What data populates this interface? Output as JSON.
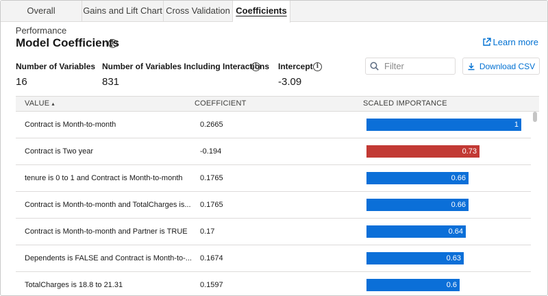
{
  "tabs": [
    {
      "label": "Overall Performance",
      "active": false
    },
    {
      "label": "Gains and Lift Chart",
      "active": false
    },
    {
      "label": "Cross Validation",
      "active": false
    },
    {
      "label": "Coefficients",
      "active": true
    }
  ],
  "header": {
    "title": "Model Coefficients",
    "learn_more": "Learn more"
  },
  "stats": [
    {
      "label": "Number of Variables",
      "value": "16",
      "info": false
    },
    {
      "label": "Number of Variables Including Interactions",
      "value": "831",
      "info": true
    },
    {
      "label": "Intercept",
      "value": "-3.09",
      "info": true
    }
  ],
  "filter": {
    "placeholder": "Filter",
    "value": ""
  },
  "download_label": "Download CSV",
  "table": {
    "headers": {
      "value": "VALUE",
      "sort_indicator": "▴",
      "coefficient": "COEFFICIENT",
      "importance": "SCALED IMPORTANCE"
    },
    "rows": [
      {
        "value": "Contract is Month-to-month",
        "coefficient": "0.2665",
        "importance": 1,
        "importance_label": "1",
        "sign": "positive"
      },
      {
        "value": "Contract is Two year",
        "coefficient": "-0.194",
        "importance": 0.73,
        "importance_label": "0.73",
        "sign": "negative"
      },
      {
        "value": "tenure is 0 to 1 and Contract is Month-to-month",
        "coefficient": "0.1765",
        "importance": 0.66,
        "importance_label": "0.66",
        "sign": "positive"
      },
      {
        "value": "Contract is Month-to-month and TotalCharges is...",
        "coefficient": "0.1765",
        "importance": 0.66,
        "importance_label": "0.66",
        "sign": "positive"
      },
      {
        "value": "Contract is Month-to-month and Partner is TRUE",
        "coefficient": "0.17",
        "importance": 0.64,
        "importance_label": "0.64",
        "sign": "positive"
      },
      {
        "value": "Dependents is FALSE and Contract is Month-to-...",
        "coefficient": "0.1674",
        "importance": 0.63,
        "importance_label": "0.63",
        "sign": "positive"
      },
      {
        "value": "TotalCharges is 18.8 to 21.31",
        "coefficient": "0.1597",
        "importance": 0.6,
        "importance_label": "0.6",
        "sign": "positive"
      }
    ]
  },
  "colors": {
    "positive": "#0b6fd8",
    "negative": "#c23934",
    "link": "#0070d2"
  },
  "icons": {
    "info": "info-icon",
    "learn_more": "external-link-icon",
    "filter": "search-icon",
    "download": "download-icon"
  }
}
